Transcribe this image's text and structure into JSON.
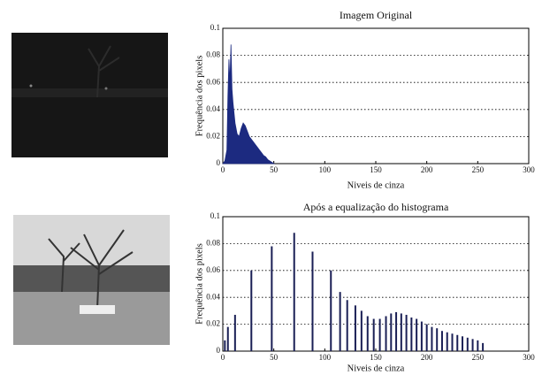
{
  "chart_data": [
    {
      "type": "area",
      "title": "Imagem Original",
      "xlabel": "Niveis de cinza",
      "ylabel": "Frequência dos pixels",
      "x": [
        0,
        2,
        4,
        5,
        6,
        7,
        8,
        9,
        10,
        12,
        14,
        16,
        18,
        20,
        22,
        24,
        26,
        28,
        30,
        32,
        34,
        36,
        38,
        40,
        42,
        44,
        46,
        48,
        50
      ],
      "values": [
        0,
        0.002,
        0.01,
        0.05,
        0.077,
        0.06,
        0.088,
        0.055,
        0.045,
        0.03,
        0.022,
        0.02,
        0.026,
        0.03,
        0.028,
        0.024,
        0.02,
        0.018,
        0.016,
        0.014,
        0.012,
        0.01,
        0.008,
        0.006,
        0.005,
        0.003,
        0.002,
        0.001,
        0
      ],
      "color": "#1c2a80",
      "xlim": [
        0,
        300
      ],
      "xticks": [
        0,
        50,
        100,
        150,
        200,
        250,
        300
      ],
      "ylim": [
        0,
        0.1
      ],
      "yticks": [
        0,
        0.02,
        0.04,
        0.06,
        0.08,
        0.1
      ],
      "grid": true
    },
    {
      "type": "stem",
      "title": "Após a equalização do histograma",
      "xlabel": "Niveis de cinza",
      "ylabel": "Frequência dos pixels",
      "x": [
        2,
        5,
        12,
        28,
        48,
        70,
        88,
        106,
        115,
        122,
        130,
        136,
        142,
        148,
        154,
        160,
        165,
        170,
        175,
        180,
        185,
        190,
        195,
        200,
        205,
        210,
        215,
        220,
        225,
        230,
        235,
        240,
        245,
        250,
        255
      ],
      "values": [
        0.008,
        0.018,
        0.027,
        0.06,
        0.078,
        0.088,
        0.074,
        0.06,
        0.044,
        0.038,
        0.034,
        0.03,
        0.026,
        0.024,
        0.024,
        0.026,
        0.028,
        0.029,
        0.028,
        0.027,
        0.025,
        0.024,
        0.022,
        0.02,
        0.018,
        0.017,
        0.015,
        0.014,
        0.013,
        0.012,
        0.011,
        0.01,
        0.009,
        0.008,
        0.006
      ],
      "color": "#1a1f55",
      "xlim": [
        0,
        300
      ],
      "xticks": [
        0,
        50,
        100,
        150,
        200,
        250,
        300
      ],
      "ylim": [
        0,
        0.1
      ],
      "yticks": [
        0,
        0.02,
        0.04,
        0.06,
        0.08,
        0.1
      ],
      "grid": true
    }
  ]
}
